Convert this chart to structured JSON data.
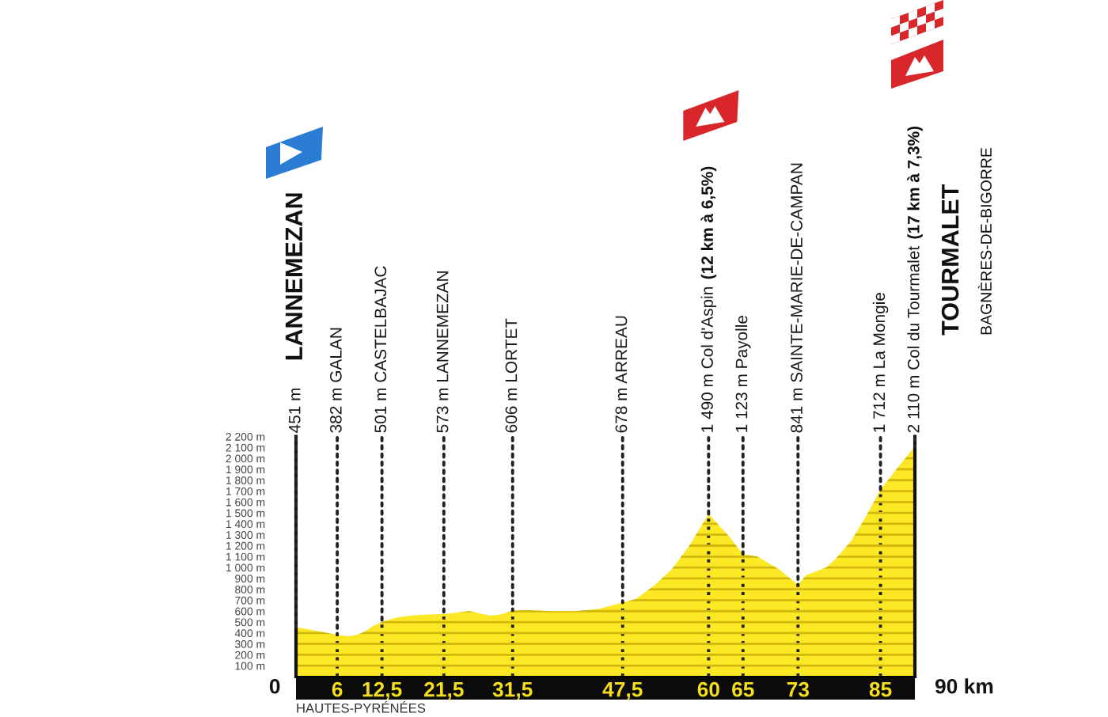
{
  "chart_data": {
    "type": "area",
    "x": [
      0,
      1.1,
      2.2,
      3.8,
      6,
      7.6,
      8.8,
      9.9,
      11.1,
      12.5,
      14.5,
      16.8,
      19.1,
      21.5,
      23.7,
      25.2,
      26.7,
      28.2,
      29.8,
      31.5,
      33.7,
      37.1,
      40.6,
      44.0,
      47.5,
      49.4,
      52.0,
      54.6,
      57.2,
      60,
      62.9,
      65,
      67.1,
      70.3,
      73,
      74.2,
      77.1,
      78.5,
      80.7,
      82.8,
      85,
      87.3,
      90
    ],
    "series": [
      {
        "color": "#fde825",
        "values": [
          451,
          440,
          430,
          410,
          382,
          370,
          380,
          410,
          460,
          501,
          540,
          560,
          570,
          573,
          590,
          600,
          580,
          560,
          570,
          606,
          610,
          600,
          600,
          620,
          678,
          710,
          830,
          980,
          1200,
          1490,
          1290,
          1123,
          1100,
          980,
          841,
          930,
          1000,
          1080,
          1240,
          1460,
          1712,
          1900,
          2110
        ]
      }
    ],
    "xlim": [
      0,
      90
    ],
    "ylim": [
      0,
      2200
    ],
    "xticks": [
      6,
      {
        "value": 12.5,
        "label": "12,5"
      },
      {
        "value": 21.5,
        "label": "21,5"
      },
      {
        "value": 31.5,
        "label": "31,5"
      },
      {
        "value": 47.5,
        "label": "47,5"
      },
      60,
      65,
      73,
      85
    ],
    "yticks": [
      {
        "value": 100,
        "label": "100 m"
      },
      {
        "value": 200,
        "label": "200 m"
      },
      {
        "value": 300,
        "label": "300 m"
      },
      {
        "value": 400,
        "label": "400 m"
      },
      {
        "value": 500,
        "label": "500 m"
      },
      {
        "value": 600,
        "label": "600 m"
      },
      {
        "value": 700,
        "label": "700 m"
      },
      {
        "value": 800,
        "label": "800 m"
      },
      {
        "value": 900,
        "label": "900 m"
      },
      {
        "value": 1000,
        "label": "1 000 m"
      },
      {
        "value": 1100,
        "label": "1 100 m"
      },
      {
        "value": 1200,
        "label": "1 200 m"
      },
      {
        "value": 1300,
        "label": "1 300 m"
      },
      {
        "value": 1400,
        "label": "1 400 m"
      },
      {
        "value": 1500,
        "label": "1 500 m"
      },
      {
        "value": 1600,
        "label": "1 600 m"
      },
      {
        "value": 1700,
        "label": "1 700 m"
      },
      {
        "value": 1800,
        "label": "1 800 m"
      },
      {
        "value": 1900,
        "label": "1 900 m"
      },
      {
        "value": 2000,
        "label": "2 000 m"
      },
      {
        "value": 2100,
        "label": "2 100 m"
      },
      {
        "value": 2200,
        "label": "2 200 m"
      }
    ],
    "grid": true,
    "annotations": [
      {
        "text": "451 m",
        "x": 0,
        "y": 451
      },
      "LANNEMEZAN",
      {
        "text": "382 m GALAN",
        "x": 6,
        "y": 382
      },
      {
        "text": "501 m CASTELBAJAC",
        "x": 12.5,
        "y": 501
      },
      {
        "text": "573 m LANNEMEZAN",
        "x": 21.5,
        "y": 573
      },
      {
        "text": "606 m LORTET",
        "x": 31.5,
        "y": 606
      },
      {
        "text": "678 m ARREAU",
        "x": 47.5,
        "y": 678
      },
      {
        "text": "1 490 m Col d'Aspin",
        "x": 60,
        "y": 1490
      },
      "(12 km à 6,5%)",
      {
        "text": "1 123 m Payolle",
        "x": 65,
        "y": 1123
      },
      {
        "text": "841 m SAINTE-MARIE-DE-CAMPAN",
        "x": 73,
        "y": 841
      },
      {
        "text": "1 712 m La Mongie",
        "x": 85,
        "y": 1712
      },
      {
        "text": "2 110 m Col du Tourmalet",
        "x": 90,
        "y": 2110
      },
      "(17 km à 7,3%)",
      "TOURMALET",
      "BAGNÈRES-DE-BIGORRE",
      "HAUTES-PYRÉNÉES",
      "0",
      "90 km"
    ]
  }
}
